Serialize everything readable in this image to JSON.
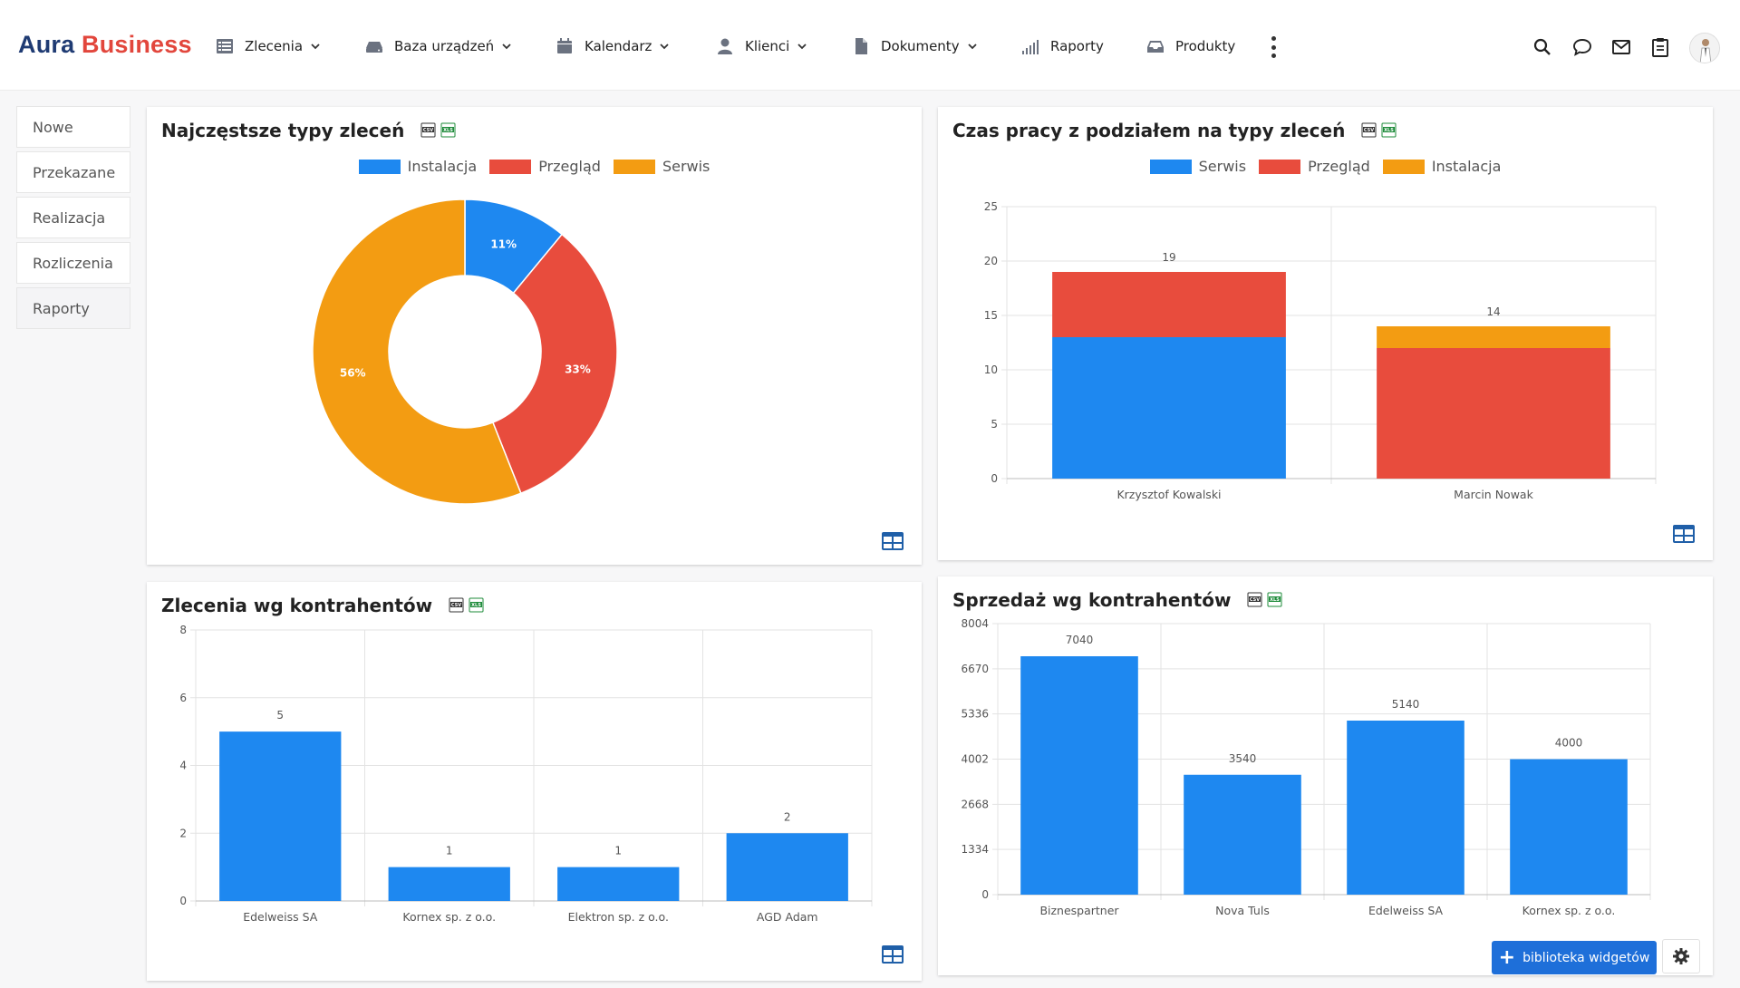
{
  "app": {
    "logo_part1": "Aura",
    "logo_part2": "Business",
    "brand_dark": "#1f3b73",
    "brand_red": "#e2463c"
  },
  "nav": {
    "items": [
      {
        "label": "Zlecenia",
        "icon": "list-icon",
        "dropdown": true
      },
      {
        "label": "Baza urządzeń",
        "icon": "device-icon",
        "dropdown": true
      },
      {
        "label": "Kalendarz",
        "icon": "calendar-icon",
        "dropdown": true
      },
      {
        "label": "Klienci",
        "icon": "user-icon",
        "dropdown": true
      },
      {
        "label": "Dokumenty",
        "icon": "document-icon",
        "dropdown": true
      },
      {
        "label": "Raporty",
        "icon": "signal-icon",
        "dropdown": false
      },
      {
        "label": "Produkty",
        "icon": "inbox-icon",
        "dropdown": false
      }
    ],
    "tools": [
      "search-icon",
      "chat-icon",
      "mail-icon",
      "clipboard-icon",
      "avatar"
    ]
  },
  "sidebar": {
    "items": [
      {
        "label": "Nowe"
      },
      {
        "label": "Przekazane"
      },
      {
        "label": "Realizacja"
      },
      {
        "label": "Rozliczenia"
      },
      {
        "label": "Raporty"
      }
    ]
  },
  "colors": {
    "blue": "#1e88f0",
    "red": "#e84c3d",
    "orange": "#f39c12"
  },
  "widgets": {
    "w1": {
      "title": "Najczęstsze typy zleceń"
    },
    "w2": {
      "title": "Czas pracy z podziałem na typy zleceń"
    },
    "w3": {
      "title": "Zlecenia wg kontrahentów"
    },
    "w4": {
      "title": "Sprzedaż wg kontrahentów"
    }
  },
  "chart_data": [
    {
      "type": "pie",
      "title": "Najczęstsze typy zleceń",
      "donut": true,
      "legend_position": "top",
      "labels": [
        "Instalacja",
        "Przegląd",
        "Serwis"
      ],
      "values": [
        11,
        33,
        56
      ],
      "value_labels": [
        "11%",
        "33%",
        "56%"
      ],
      "colors": [
        "#1e88f0",
        "#e84c3d",
        "#f39c12"
      ]
    },
    {
      "type": "bar",
      "stacked": true,
      "title": "Czas pracy z podziałem na typy zleceń",
      "legend_position": "top",
      "categories": [
        "Krzysztof Kowalski",
        "Marcin Nowak"
      ],
      "series": [
        {
          "name": "Serwis",
          "values": [
            13,
            0
          ],
          "color": "#1e88f0"
        },
        {
          "name": "Przegląd",
          "values": [
            6,
            12
          ],
          "color": "#e84c3d"
        },
        {
          "name": "Instalacja",
          "values": [
            0,
            2
          ],
          "color": "#f39c12"
        }
      ],
      "totals": [
        19,
        14
      ],
      "ylim": [
        0,
        25
      ],
      "yticks": [
        0,
        5,
        10,
        15,
        20,
        25
      ],
      "grid": true
    },
    {
      "type": "bar",
      "title": "Zlecenia wg kontrahentów",
      "categories": [
        "Edelweiss SA",
        "Kornex sp. z o.o.",
        "Elektron sp. z o.o.",
        "AGD Adam"
      ],
      "values": [
        5,
        1,
        1,
        2
      ],
      "ylim": [
        0,
        8
      ],
      "yticks": [
        0,
        2,
        4,
        6,
        8
      ],
      "color": "#1e88f0",
      "grid": true
    },
    {
      "type": "bar",
      "title": "Sprzedaż wg kontrahentów",
      "categories": [
        "Biznespartner",
        "Nova Tuls",
        "Edelweiss SA",
        "Kornex sp. z o.o."
      ],
      "values": [
        7040,
        3540,
        5140,
        4000
      ],
      "ylim": [
        0,
        8004
      ],
      "yticks": [
        0,
        1334,
        2668,
        4002,
        5336,
        6670,
        8004
      ],
      "color": "#1e88f0",
      "grid": true
    }
  ],
  "footer": {
    "library_button": "biblioteka widgetów",
    "settings_icon": "gear-icon"
  }
}
